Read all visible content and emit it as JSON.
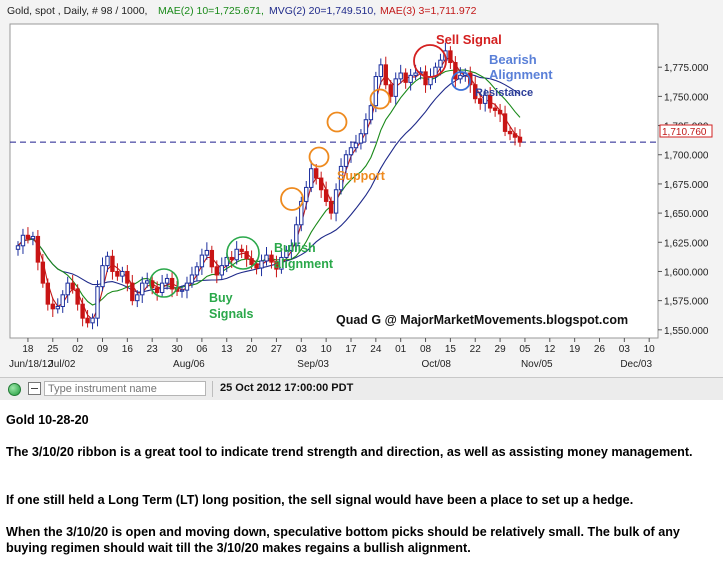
{
  "header": {
    "instrument": "Gold, spot , Daily, # 98 / 1000,",
    "mae_label": "MAE(2) 10=1,725.671,",
    "mvg_label": "MVG(2) 20=1,749.510,",
    "mae3_label": "MAE(3) 3=1,711.972"
  },
  "colors": {
    "mae10": "#1a8a1a",
    "mvg20": "#1f2a8a",
    "mae3": "#c21818",
    "candle_up": "#1c2f9e",
    "candle_down": "#c81414",
    "resistance_line": "#1c1c8e",
    "annotation_green": "#2aa84a",
    "annotation_orange": "#ee8a1e",
    "annotation_red": "#d42020",
    "annotation_blue": "#3a6fd8"
  },
  "annotations": {
    "sell_signal": "Sell Signal",
    "bearish": "Bearish",
    "alignment": "Alignment",
    "resistance": "Resistance",
    "support": "Support",
    "bullish": "Bullish",
    "bullish_alignment": "alignment",
    "buy": "Buy",
    "signals": "Signals",
    "credit": "Quad G @ MajorMarketMovements.blogspot.com"
  },
  "last_price_tag": "1,710.760",
  "toolbar": {
    "input_placeholder": "Type instrument name",
    "datetime": "25 Oct 2012 17:00:00 PDT"
  },
  "caption": {
    "title": "Gold 10-28-20",
    "p1": "The 3/10/20 ribbon is a great tool to indicate trend strength and direction, as well as assisting money management.",
    "p2": "If one still held a Long Term (LT) long position, the sell signal would have been a place to set up a hedge.",
    "p3": "When the 3/10/20 is open and moving down, speculative bottom picks should be relatively small. The bulk of any buying regimen should wait till the 3/10/20 makes regains a bullish alignment."
  },
  "chart_data": {
    "type": "candlestick",
    "x_tick_labels": [
      "18",
      "25",
      "02",
      "09",
      "16",
      "23",
      "30",
      "06",
      "13",
      "20",
      "27",
      "03",
      "10",
      "17",
      "24",
      "01",
      "08",
      "15",
      "22",
      "29",
      "05",
      "12",
      "19",
      "26",
      "03",
      "10"
    ],
    "month_labels": [
      "Jun/18/12",
      "Jul/02",
      "Aug/06",
      "Sep/03",
      "Oct/08",
      "Nov/05",
      "Dec/03"
    ],
    "y_tick_labels": [
      "1,775.000",
      "1,750.000",
      "1,725.000",
      "1,700.000",
      "1,675.000",
      "1,650.000",
      "1,625.000",
      "1,600.000",
      "1,575.000",
      "1,550.000"
    ],
    "ylim": [
      1543,
      1812
    ],
    "resistance_level": 1710.76,
    "close": [
      1622,
      1631,
      1628,
      1630,
      1608,
      1590,
      1572,
      1568,
      1570,
      1580,
      1590,
      1585,
      1572,
      1560,
      1556,
      1560,
      1587,
      1605,
      1613,
      1600,
      1596,
      1600,
      1590,
      1575,
      1580,
      1590,
      1592,
      1586,
      1582,
      1590,
      1594,
      1585,
      1583,
      1584,
      1590,
      1597,
      1604,
      1614,
      1618,
      1604,
      1597,
      1605,
      1612,
      1610,
      1619,
      1617,
      1611,
      1606,
      1603,
      1609,
      1614,
      1608,
      1602,
      1612,
      1618,
      1622,
      1640,
      1660,
      1672,
      1688,
      1680,
      1670,
      1660,
      1650,
      1670,
      1690,
      1700,
      1706,
      1710,
      1718,
      1730,
      1742,
      1767,
      1777,
      1760,
      1750,
      1765,
      1770,
      1762,
      1768,
      1770,
      1771,
      1760,
      1767,
      1775,
      1781,
      1789,
      1779,
      1765,
      1768,
      1770,
      1760,
      1748,
      1744,
      1751,
      1740,
      1738,
      1735,
      1720,
      1718,
      1715,
      1710.76
    ],
    "series": [
      {
        "name": "MAE(2) 10",
        "value": 1725.671
      },
      {
        "name": "MVG(2) 20",
        "value": 1749.51
      },
      {
        "name": "MAE(3) 3",
        "value": 1711.972
      }
    ]
  }
}
